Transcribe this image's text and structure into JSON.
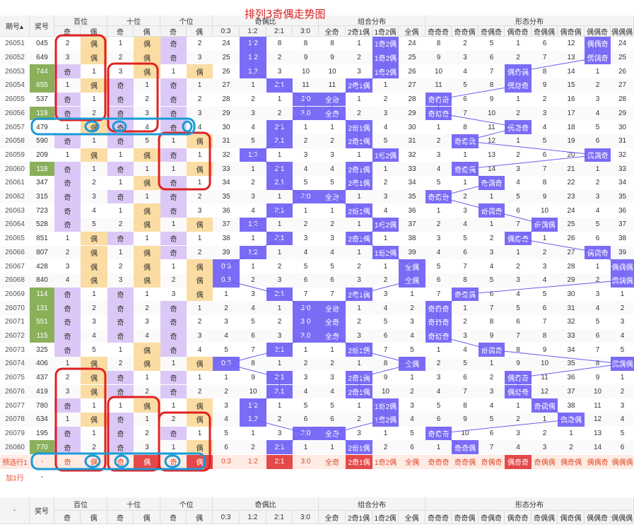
{
  "title": "排列3奇偶走势图",
  "colors": {
    "blue": "#7b6cf6",
    "red": "#e54848",
    "green": "#8ab05a",
    "purple": "#dcc8f6",
    "orange": "#fbdca2",
    "preview": "#fdebe4"
  },
  "header": {
    "qi": "期号",
    "jiang": "奖号",
    "bai": "百位",
    "shi": "十位",
    "ge": "个位",
    "ratio": "奇偶比",
    "combo": "组合分布",
    "shape": "形态分布",
    "odd": "奇",
    "even": "偶",
    "ratio_cols": [
      "0:3",
      "1:2",
      "2:1",
      "3:0"
    ],
    "combo_cols": [
      "全奇",
      "2奇1偶",
      "1奇2偶",
      "全偶"
    ],
    "shape_cols": [
      "奇奇奇",
      "奇奇偶",
      "奇偶奇",
      "偶奇奇",
      "奇偶偶",
      "偶奇偶",
      "偶偶奇",
      "偶偶偶"
    ]
  },
  "rows": [
    {
      "q": "26051",
      "n": "045",
      "g": 0,
      "c": [
        "2",
        "偶",
        "1",
        "偶",
        "奇",
        "2",
        "24",
        "1:2",
        "8",
        "8",
        "8",
        "1",
        "1奇2偶",
        "24",
        "8",
        "2",
        "5",
        "1",
        "6",
        "12",
        "偶偶奇",
        "24"
      ]
    },
    {
      "q": "26052",
      "n": "649",
      "g": 0,
      "c": [
        "3",
        "偶",
        "2",
        "偶",
        "奇",
        "3",
        "25",
        "1:2",
        "2",
        "9",
        "9",
        "2",
        "1奇2偶",
        "25",
        "9",
        "3",
        "6",
        "2",
        "7",
        "13",
        "偶偶奇",
        "25"
      ]
    },
    {
      "q": "26053",
      "n": "744",
      "g": 1,
      "c": [
        "奇",
        "1",
        "3",
        "偶",
        "1",
        "偶",
        "26",
        "1:2",
        "3",
        "10",
        "10",
        "3",
        "1奇2偶",
        "26",
        "10",
        "4",
        "7",
        "偶奇偶",
        "8",
        "14",
        "1",
        "26"
      ]
    },
    {
      "q": "26054",
      "n": "655",
      "g": 1,
      "c": [
        "1",
        "偶",
        "奇",
        "1",
        "奇",
        "1",
        "27",
        "1",
        "2:1",
        "11",
        "11",
        "2奇1偶",
        "1",
        "27",
        "11",
        "5",
        "8",
        "偶奇奇",
        "9",
        "15",
        "2",
        "27"
      ]
    },
    {
      "q": "26055",
      "n": "537",
      "g": 0,
      "c": [
        "奇",
        "1",
        "奇",
        "2",
        "奇",
        "2",
        "28",
        "2",
        "1",
        "3:0",
        "全奇",
        "1",
        "2",
        "28",
        "奇奇奇",
        "6",
        "9",
        "1",
        "2",
        "16",
        "3",
        "28"
      ]
    },
    {
      "q": "26056",
      "n": "119",
      "g": 1,
      "c": [
        "奇",
        "2",
        "奇",
        "3",
        "奇",
        "3",
        "29",
        "3",
        "2",
        "3:0",
        "全奇",
        "2",
        "3",
        "29",
        "奇奇奇",
        "7",
        "10",
        "2",
        "3",
        "17",
        "4",
        "29"
      ]
    },
    {
      "q": "26057",
      "n": "479",
      "g": 0,
      "c": [
        "1",
        "偶",
        "奇",
        "4",
        "奇",
        "4",
        "30",
        "4",
        "2:1",
        "1",
        "1",
        "2奇1偶",
        "4",
        "30",
        "1",
        "8",
        "11",
        "偶奇奇",
        "4",
        "18",
        "5",
        "30"
      ]
    },
    {
      "q": "26058",
      "n": "590",
      "g": 0,
      "c": [
        "奇",
        "1",
        "奇",
        "5",
        "1",
        "偶",
        "31",
        "5",
        "2:1",
        "2",
        "2",
        "2奇1偶",
        "5",
        "31",
        "2",
        "奇奇偶",
        "12",
        "1",
        "5",
        "19",
        "6",
        "31"
      ]
    },
    {
      "q": "26059",
      "n": "209",
      "g": 0,
      "c": [
        "1",
        "偶",
        "1",
        "偶",
        "奇",
        "1",
        "32",
        "1:2",
        "1",
        "3",
        "3",
        "1",
        "1奇2偶",
        "32",
        "3",
        "1",
        "13",
        "2",
        "6",
        "20",
        "偶偶奇",
        "32"
      ]
    },
    {
      "q": "26060",
      "n": "118",
      "g": 1,
      "c": [
        "奇",
        "1",
        "奇",
        "1",
        "1",
        "偶",
        "33",
        "1",
        "2:1",
        "4",
        "4",
        "2奇1偶",
        "1",
        "33",
        "4",
        "奇奇偶",
        "14",
        "3",
        "7",
        "21",
        "1",
        "33"
      ]
    },
    {
      "q": "26061",
      "n": "347",
      "g": 0,
      "c": [
        "奇",
        "2",
        "1",
        "偶",
        "奇",
        "1",
        "34",
        "2",
        "2:1",
        "5",
        "5",
        "2奇1偶",
        "2",
        "34",
        "5",
        "1",
        "奇偶奇",
        "4",
        "8",
        "22",
        "2",
        "34"
      ]
    },
    {
      "q": "26062",
      "n": "315",
      "g": 0,
      "c": [
        "奇",
        "3",
        "奇",
        "1",
        "奇",
        "2",
        "35",
        "3",
        "1",
        "3:0",
        "全奇",
        "1",
        "3",
        "35",
        "奇奇奇",
        "2",
        "1",
        "5",
        "9",
        "23",
        "3",
        "35"
      ]
    },
    {
      "q": "26063",
      "n": "723",
      "g": 0,
      "c": [
        "奇",
        "4",
        "1",
        "偶",
        "奇",
        "3",
        "36",
        "4",
        "2:1",
        "1",
        "1",
        "2奇1偶",
        "4",
        "36",
        "1",
        "3",
        "奇偶奇",
        "6",
        "10",
        "24",
        "4",
        "36"
      ]
    },
    {
      "q": "26064",
      "n": "528",
      "g": 0,
      "c": [
        "奇",
        "5",
        "2",
        "偶",
        "1",
        "偶",
        "37",
        "1:2",
        "1",
        "2",
        "2",
        "1",
        "1奇2偶",
        "37",
        "2",
        "4",
        "1",
        "7",
        "奇偶偶",
        "25",
        "5",
        "37"
      ]
    },
    {
      "q": "26065",
      "n": "851",
      "g": 0,
      "c": [
        "1",
        "偶",
        "奇",
        "1",
        "奇",
        "1",
        "38",
        "1",
        "2:1",
        "3",
        "3",
        "2奇1偶",
        "1",
        "38",
        "3",
        "5",
        "2",
        "偶奇奇",
        "1",
        "26",
        "6",
        "38"
      ]
    },
    {
      "q": "26066",
      "n": "807",
      "g": 0,
      "c": [
        "2",
        "偶",
        "1",
        "偶",
        "奇",
        "2",
        "39",
        "1:2",
        "1",
        "4",
        "4",
        "1",
        "1奇2偶",
        "39",
        "4",
        "6",
        "3",
        "1",
        "2",
        "27",
        "偶偶奇",
        "39"
      ]
    },
    {
      "q": "26067",
      "n": "428",
      "g": 0,
      "c": [
        "3",
        "偶",
        "2",
        "偶",
        "1",
        "偶",
        "0:3",
        "1",
        "2",
        "5",
        "5",
        "2",
        "1",
        "全偶",
        "5",
        "7",
        "4",
        "2",
        "3",
        "28",
        "1",
        "偶偶偶"
      ]
    },
    {
      "q": "26068",
      "n": "840",
      "g": 0,
      "c": [
        "4",
        "偶",
        "3",
        "偶",
        "2",
        "偶",
        "0:3",
        "2",
        "3",
        "6",
        "6",
        "3",
        "2",
        "全偶",
        "6",
        "8",
        "5",
        "3",
        "4",
        "29",
        "2",
        "偶偶偶"
      ]
    },
    {
      "q": "26069",
      "n": "114",
      "g": 1,
      "c": [
        "奇",
        "1",
        "奇",
        "1",
        "3",
        "偶",
        "1",
        "3",
        "2:1",
        "7",
        "7",
        "2奇1偶",
        "3",
        "1",
        "7",
        "奇奇偶",
        "6",
        "4",
        "5",
        "30",
        "3",
        "1"
      ]
    },
    {
      "q": "26070",
      "n": "131",
      "g": 1,
      "c": [
        "奇",
        "2",
        "奇",
        "2",
        "奇",
        "1",
        "2",
        "4",
        "1",
        "3:0",
        "全奇",
        "1",
        "4",
        "2",
        "奇奇奇",
        "1",
        "7",
        "5",
        "6",
        "31",
        "4",
        "2"
      ]
    },
    {
      "q": "26071",
      "n": "551",
      "g": 1,
      "c": [
        "奇",
        "3",
        "奇",
        "3",
        "奇",
        "2",
        "3",
        "5",
        "2",
        "3:0",
        "全奇",
        "2",
        "5",
        "3",
        "奇奇奇",
        "2",
        "8",
        "6",
        "7",
        "32",
        "5",
        "3"
      ]
    },
    {
      "q": "26072",
      "n": "115",
      "g": 1,
      "c": [
        "奇",
        "4",
        "奇",
        "4",
        "奇",
        "3",
        "4",
        "6",
        "3",
        "3:0",
        "全奇",
        "3",
        "6",
        "4",
        "奇奇奇",
        "3",
        "9",
        "7",
        "8",
        "33",
        "6",
        "4"
      ]
    },
    {
      "q": "26073",
      "n": "325",
      "g": 0,
      "c": [
        "奇",
        "5",
        "1",
        "偶",
        "奇",
        "4",
        "5",
        "7",
        "2:1",
        "1",
        "1",
        "2奇1偶",
        "7",
        "5",
        "1",
        "4",
        "奇偶奇",
        "8",
        "9",
        "34",
        "7",
        "5"
      ]
    },
    {
      "q": "26074",
      "n": "406",
      "g": 0,
      "c": [
        "1",
        "偶",
        "2",
        "偶",
        "1",
        "偶",
        "0:3",
        "8",
        "1",
        "2",
        "2",
        "1",
        "8",
        "全偶",
        "2",
        "5",
        "1",
        "9",
        "10",
        "35",
        "8",
        "偶偶偶"
      ]
    },
    {
      "q": "26075",
      "n": "437",
      "g": 0,
      "c": [
        "2",
        "偶",
        "奇",
        "1",
        "奇",
        "1",
        "1",
        "9",
        "2:1",
        "3",
        "3",
        "2奇1偶",
        "9",
        "1",
        "3",
        "6",
        "2",
        "偶奇奇",
        "11",
        "36",
        "9",
        "1"
      ]
    },
    {
      "q": "26076",
      "n": "419",
      "g": 0,
      "c": [
        "3",
        "偶",
        "奇",
        "2",
        "奇",
        "2",
        "2",
        "10",
        "2:1",
        "4",
        "4",
        "2奇1偶",
        "10",
        "2",
        "4",
        "7",
        "3",
        "偶奇奇",
        "12",
        "37",
        "10",
        "2"
      ]
    },
    {
      "q": "26077",
      "n": "780",
      "g": 0,
      "c": [
        "奇",
        "1",
        "1",
        "偶",
        "1",
        "偶",
        "3",
        "1:2",
        "1",
        "5",
        "5",
        "1",
        "1奇2偶",
        "3",
        "5",
        "8",
        "4",
        "1",
        "奇偶偶",
        "38",
        "11",
        "3"
      ]
    },
    {
      "q": "26078",
      "n": "634",
      "g": 0,
      "c": [
        "1",
        "偶",
        "奇",
        "1",
        "2",
        "偶",
        "4",
        "1:2",
        "2",
        "6",
        "6",
        "2",
        "1奇2偶",
        "4",
        "6",
        "9",
        "5",
        "2",
        "1",
        "偶奇偶",
        "12",
        "4"
      ]
    },
    {
      "q": "26079",
      "n": "195",
      "g": 0,
      "c": [
        "奇",
        "1",
        "奇",
        "2",
        "奇",
        "1",
        "5",
        "1",
        "3",
        "3:0",
        "全奇",
        "3",
        "1",
        "5",
        "奇奇奇",
        "10",
        "6",
        "3",
        "2",
        "1",
        "13",
        "5"
      ]
    },
    {
      "q": "26080",
      "n": "770",
      "g": 1,
      "c": [
        "奇",
        "2",
        "奇",
        "3",
        "1",
        "偶",
        "6",
        "2",
        "2:1",
        "1",
        "1",
        "2奇1偶",
        "2",
        "6",
        "1",
        "奇奇偶",
        "7",
        "4",
        "3",
        "2",
        "14",
        "6"
      ]
    }
  ],
  "preview": {
    "label": "预选行1",
    "n": "-",
    "c": [
      "奇",
      "偶",
      "奇",
      "偶",
      "奇",
      "偶",
      "0:3",
      "1:2",
      "2:1",
      "3:0",
      "全奇",
      "2奇1偶",
      "1奇2偶",
      "全偶",
      "奇奇奇",
      "奇奇偶",
      "奇偶奇",
      "偶奇奇",
      "奇偶偶",
      "偶奇偶",
      "偶偶奇",
      "偶偶偶"
    ],
    "hl": [
      3,
      5,
      8,
      11,
      17
    ]
  },
  "add_row": "加1行",
  "dash": "-"
}
